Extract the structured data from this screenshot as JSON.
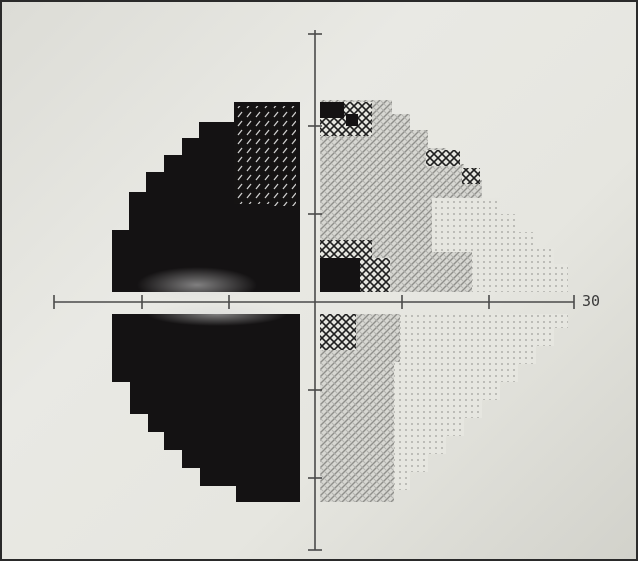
{
  "figure": {
    "axis_label_right": "30"
  },
  "colors": {
    "paper": "#e6e6e0",
    "black_defect": "#141213",
    "axis": "#4a4a4a",
    "dark_pattern": "#2e2e2e",
    "mid_gray": "#a9a9a5",
    "light_dots": "#c7c7c2"
  },
  "legend_patterns": [
    "dense-dark-hatch",
    "medium-gray-cross-hatch",
    "light-dots",
    "solid-black"
  ]
}
